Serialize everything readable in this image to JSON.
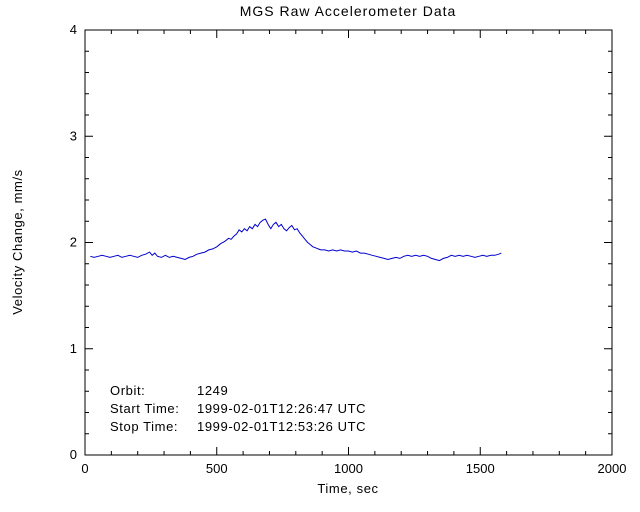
{
  "title": "MGS Raw Accelerometer Data",
  "annotations": {
    "orbit_label": "Orbit:",
    "orbit_value": "1249",
    "start_label": "Start Time:",
    "start_value": "1999-02-01T12:26:47 UTC",
    "stop_label": "Stop Time:",
    "stop_value": "1999-02-01T12:53:26 UTC"
  },
  "colors": {
    "line": "#0000cd",
    "axis": "#000000",
    "background": "#ffffff"
  },
  "chart_data": {
    "type": "line",
    "title": "MGS Raw Accelerometer Data",
    "xlabel": "Time, sec",
    "ylabel": "Velocity Change, mm/s",
    "xlim": [
      0,
      2000
    ],
    "ylim": [
      0,
      4
    ],
    "xticks": [
      0,
      500,
      1000,
      1500,
      2000
    ],
    "yticks": [
      0,
      1,
      2,
      3,
      4
    ],
    "x_minor_step": 100,
    "y_minor_step": 0.2,
    "grid": false,
    "legend": "none",
    "line_color": "#0000cd",
    "series": [
      {
        "name": "velocity_change_mm_s",
        "points": [
          [
            20,
            1.87
          ],
          [
            35,
            1.86
          ],
          [
            50,
            1.87
          ],
          [
            65,
            1.88
          ],
          [
            80,
            1.87
          ],
          [
            95,
            1.86
          ],
          [
            110,
            1.87
          ],
          [
            125,
            1.88
          ],
          [
            140,
            1.86
          ],
          [
            155,
            1.87
          ],
          [
            170,
            1.88
          ],
          [
            185,
            1.87
          ],
          [
            200,
            1.86
          ],
          [
            215,
            1.88
          ],
          [
            230,
            1.89
          ],
          [
            245,
            1.91
          ],
          [
            255,
            1.88
          ],
          [
            265,
            1.9
          ],
          [
            275,
            1.87
          ],
          [
            290,
            1.86
          ],
          [
            305,
            1.88
          ],
          [
            320,
            1.86
          ],
          [
            335,
            1.87
          ],
          [
            350,
            1.86
          ],
          [
            365,
            1.85
          ],
          [
            380,
            1.84
          ],
          [
            395,
            1.86
          ],
          [
            410,
            1.87
          ],
          [
            425,
            1.89
          ],
          [
            440,
            1.9
          ],
          [
            455,
            1.91
          ],
          [
            470,
            1.93
          ],
          [
            485,
            1.94
          ],
          [
            500,
            1.96
          ],
          [
            515,
            1.99
          ],
          [
            530,
            2.01
          ],
          [
            545,
            2.04
          ],
          [
            555,
            2.03
          ],
          [
            565,
            2.06
          ],
          [
            575,
            2.08
          ],
          [
            585,
            2.12
          ],
          [
            595,
            2.1
          ],
          [
            605,
            2.13
          ],
          [
            615,
            2.11
          ],
          [
            625,
            2.15
          ],
          [
            635,
            2.13
          ],
          [
            645,
            2.17
          ],
          [
            655,
            2.15
          ],
          [
            665,
            2.19
          ],
          [
            675,
            2.21
          ],
          [
            685,
            2.22
          ],
          [
            695,
            2.17
          ],
          [
            705,
            2.13
          ],
          [
            715,
            2.17
          ],
          [
            725,
            2.19
          ],
          [
            735,
            2.15
          ],
          [
            745,
            2.17
          ],
          [
            755,
            2.13
          ],
          [
            765,
            2.11
          ],
          [
            775,
            2.14
          ],
          [
            785,
            2.16
          ],
          [
            795,
            2.12
          ],
          [
            805,
            2.13
          ],
          [
            815,
            2.09
          ],
          [
            825,
            2.06
          ],
          [
            835,
            2.03
          ],
          [
            845,
            2.0
          ],
          [
            855,
            1.98
          ],
          [
            865,
            1.96
          ],
          [
            875,
            1.95
          ],
          [
            885,
            1.94
          ],
          [
            895,
            1.93
          ],
          [
            910,
            1.93
          ],
          [
            925,
            1.92
          ],
          [
            940,
            1.93
          ],
          [
            955,
            1.92
          ],
          [
            970,
            1.93
          ],
          [
            985,
            1.92
          ],
          [
            1000,
            1.92
          ],
          [
            1015,
            1.91
          ],
          [
            1030,
            1.92
          ],
          [
            1045,
            1.9
          ],
          [
            1060,
            1.9
          ],
          [
            1075,
            1.89
          ],
          [
            1090,
            1.88
          ],
          [
            1105,
            1.87
          ],
          [
            1120,
            1.86
          ],
          [
            1135,
            1.85
          ],
          [
            1150,
            1.84
          ],
          [
            1165,
            1.85
          ],
          [
            1180,
            1.86
          ],
          [
            1195,
            1.85
          ],
          [
            1210,
            1.87
          ],
          [
            1225,
            1.88
          ],
          [
            1240,
            1.87
          ],
          [
            1255,
            1.88
          ],
          [
            1270,
            1.87
          ],
          [
            1285,
            1.88
          ],
          [
            1300,
            1.87
          ],
          [
            1315,
            1.85
          ],
          [
            1330,
            1.84
          ],
          [
            1345,
            1.83
          ],
          [
            1360,
            1.85
          ],
          [
            1375,
            1.86
          ],
          [
            1390,
            1.88
          ],
          [
            1405,
            1.87
          ],
          [
            1420,
            1.88
          ],
          [
            1435,
            1.87
          ],
          [
            1450,
            1.88
          ],
          [
            1465,
            1.87
          ],
          [
            1480,
            1.86
          ],
          [
            1495,
            1.87
          ],
          [
            1510,
            1.88
          ],
          [
            1525,
            1.87
          ],
          [
            1540,
            1.88
          ],
          [
            1555,
            1.88
          ],
          [
            1570,
            1.89
          ],
          [
            1580,
            1.9
          ]
        ]
      }
    ]
  }
}
